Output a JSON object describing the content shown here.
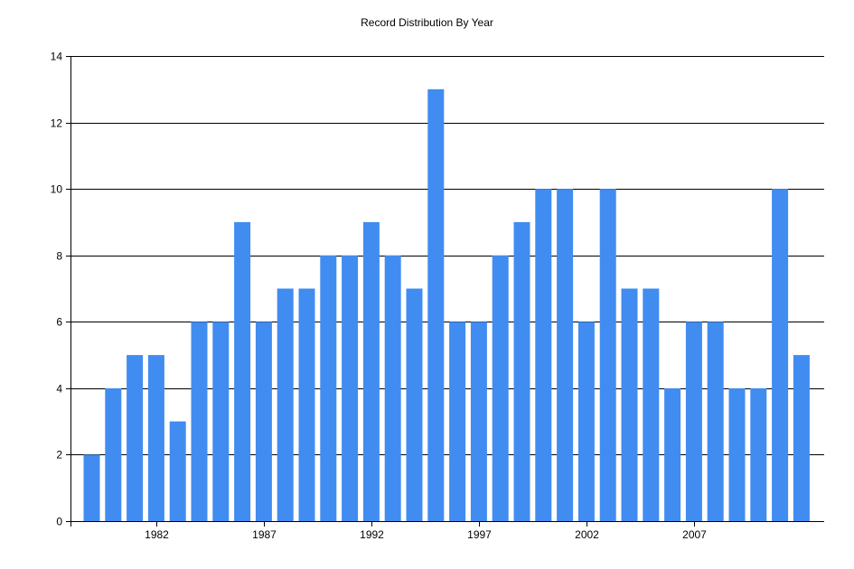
{
  "chart_data": {
    "type": "bar",
    "title": "Record Distribution By Year",
    "xlabel": "",
    "ylabel": "",
    "ylim": [
      0,
      14
    ],
    "yticks": [
      0,
      2,
      4,
      6,
      8,
      10,
      12,
      14
    ],
    "xticks": [
      1982,
      1987,
      1992,
      1997,
      2002,
      2007
    ],
    "grid": "horizontal",
    "bar_color": "#418CF0",
    "categories": [
      1979,
      1980,
      1981,
      1982,
      1983,
      1984,
      1985,
      1986,
      1987,
      1988,
      1989,
      1990,
      1991,
      1992,
      1993,
      1994,
      1995,
      1996,
      1997,
      1998,
      1999,
      2000,
      2001,
      2002,
      2003,
      2004,
      2005,
      2006,
      2007,
      2008,
      2009,
      2010,
      2011,
      2012
    ],
    "values": [
      2,
      4,
      5,
      5,
      3,
      6,
      6,
      9,
      6,
      7,
      7,
      8,
      8,
      9,
      8,
      7,
      13,
      6,
      6,
      8,
      9,
      10,
      10,
      6,
      10,
      7,
      7,
      4,
      6,
      6,
      4,
      4,
      10,
      5
    ]
  }
}
